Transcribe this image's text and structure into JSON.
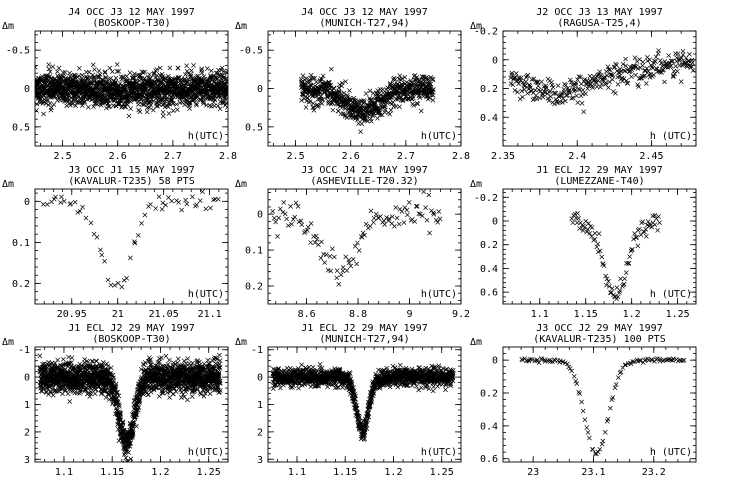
{
  "chart_data": [
    {
      "type": "scatter",
      "title_line1": "J4 OCC J3 12 MAY 1997",
      "title_line2": "(BOSKOOP-T30)",
      "ylabel": "Δm",
      "xlabel": "h(UTC)",
      "xlim": [
        2.45,
        2.8
      ],
      "ylim": [
        0.75,
        -0.75
      ],
      "xticks": [
        2.5,
        2.6,
        2.7,
        2.8
      ],
      "xtick_labels": [
        "2.5",
        "2.6",
        "2.7",
        "2.8"
      ],
      "yticks": [
        -0.5,
        0,
        0.5
      ],
      "ytick_labels": [
        "-0.5",
        "0",
        "0.5"
      ],
      "marker": "x",
      "point_count": 1600,
      "noise": 0.11,
      "features": [
        {
          "kind": "dip",
          "center": 2.62,
          "depth": 0.05,
          "width": 0.06
        }
      ]
    },
    {
      "type": "scatter",
      "title_line1": "J4 OCC J3 12 MAY 1997",
      "title_line2": "(MUNICH-T27,94)",
      "ylabel": "Δm",
      "xlabel": "h(UTC)",
      "xlim": [
        2.45,
        2.8
      ],
      "ylim": [
        0.75,
        -0.75
      ],
      "xticks": [
        2.5,
        2.6,
        2.7,
        2.8
      ],
      "xtick_labels": [
        "2.5",
        "2.6",
        "2.7",
        "2.8"
      ],
      "yticks": [
        -0.5,
        0,
        0.5
      ],
      "ytick_labels": [
        "-0.5",
        "0",
        "0.5"
      ],
      "marker": "x",
      "point_count": 700,
      "noise": 0.09,
      "xrange": [
        2.51,
        2.75
      ],
      "features": [
        {
          "kind": "dip",
          "center": 2.62,
          "depth": 0.3,
          "width": 0.045
        }
      ]
    },
    {
      "type": "scatter",
      "title_line1": "J2 OCC J3 13 MAY 1997",
      "title_line2": "(RAGUSA-T25,4)",
      "ylabel": "Δm",
      "xlabel": "h (UTC)",
      "xlim": [
        2.35,
        2.48
      ],
      "ylim": [
        0.6,
        -0.2
      ],
      "xticks": [
        2.35,
        2.4,
        2.45
      ],
      "xtick_labels": [
        "2.35",
        "2.4",
        "2.45"
      ],
      "yticks": [
        -0.2,
        0,
        0.2,
        0.4
      ],
      "ytick_labels": [
        "-0.2",
        "0",
        "0.2",
        "0.4"
      ],
      "marker": "x",
      "point_count": 320,
      "noise": 0.05,
      "xrange": [
        2.355,
        2.478
      ],
      "features": [
        {
          "kind": "trend",
          "x": [
            2.355,
            2.385,
            2.42,
            2.478
          ],
          "y": [
            0.12,
            0.25,
            0.12,
            0.0
          ]
        }
      ]
    },
    {
      "type": "scatter",
      "title_line1": "J3 OCC J1 15 MAY 1997",
      "title_line2": "(KAVALUR-T235) 58 PTS",
      "ylabel": "Δm",
      "xlabel": "h(UTC)",
      "xlim": [
        20.91,
        21.12
      ],
      "ylim": [
        0.25,
        -0.03
      ],
      "xticks": [
        20.95,
        21,
        21.05,
        21.1
      ],
      "xtick_labels": [
        "20.95",
        "21",
        "21.05",
        "21.1"
      ],
      "yticks": [
        0,
        0.1,
        0.2
      ],
      "ytick_labels": [
        "0",
        "0.1",
        "0.2"
      ],
      "marker": "x",
      "point_count": 58,
      "noise": 0.01,
      "xrange": [
        20.92,
        21.11
      ],
      "features": [
        {
          "kind": "dip",
          "center": 20.998,
          "depth": 0.21,
          "width": 0.024
        }
      ]
    },
    {
      "type": "scatter",
      "title_line1": "J3 OCC J4 21 MAY 1997",
      "title_line2": "(ASHEVILLE-T20.32)",
      "ylabel": "Δm",
      "xlabel": "h(UTC)",
      "xlim": [
        8.45,
        9.2
      ],
      "ylim": [
        0.25,
        -0.07
      ],
      "xticks": [
        8.6,
        8.8,
        9,
        9.2
      ],
      "xtick_labels": [
        "8.6",
        "8.8",
        "9",
        "9.2"
      ],
      "yticks": [
        0,
        0.1,
        0.2
      ],
      "ytick_labels": [
        "0",
        "0.1",
        "0.2"
      ],
      "marker": "x",
      "point_count": 110,
      "noise": 0.02,
      "xrange": [
        8.47,
        9.12
      ],
      "features": [
        {
          "kind": "dip",
          "center": 8.72,
          "depth": 0.16,
          "width": 0.1
        }
      ]
    },
    {
      "type": "scatter",
      "title_line1": "J1 ECL J2 29 MAY 1997",
      "title_line2": "(LUMEZZANE-T40)",
      "ylabel": "Δm",
      "xlabel": "h  (UTC)",
      "xlim": [
        1.06,
        1.27
      ],
      "ylim": [
        0.7,
        -0.27
      ],
      "xticks": [
        1.1,
        1.15,
        1.2,
        1.25
      ],
      "xtick_labels": [
        "1.1",
        "1.15",
        "1.2",
        "1.25"
      ],
      "yticks": [
        -0.2,
        0,
        0.2,
        0.4,
        0.6
      ],
      "ytick_labels": [
        "-0.2",
        "0",
        "0.2",
        "0.4",
        "0.6"
      ],
      "marker": "x",
      "point_count": 90,
      "noise": 0.04,
      "xrange": [
        1.135,
        1.23
      ],
      "features": [
        {
          "kind": "dip",
          "center": 1.182,
          "depth": 0.62,
          "width": 0.018
        }
      ]
    },
    {
      "type": "scatter",
      "title_line1": "J1 ECL J2 29 MAY 1997",
      "title_line2": "(BOSKOOP-T30)",
      "ylabel": "Δm",
      "xlabel": "h(UTC)",
      "xlim": [
        1.07,
        1.27
      ],
      "ylim": [
        3.1,
        -1.1
      ],
      "xticks": [
        1.1,
        1.15,
        1.2,
        1.25
      ],
      "xtick_labels": [
        "1.1",
        "1.15",
        "1.2",
        "1.25"
      ],
      "yticks": [
        -1,
        0,
        1,
        2,
        3
      ],
      "ytick_labels": [
        "-1",
        "0",
        "1",
        "2",
        "3"
      ],
      "marker": "x",
      "point_count": 1800,
      "noise": 0.28,
      "xrange": [
        1.075,
        1.262
      ],
      "features": [
        {
          "kind": "dip",
          "center": 1.165,
          "depth": 2.4,
          "width": 0.011
        }
      ]
    },
    {
      "type": "scatter",
      "title_line1": "J1 ECL J2 29 MAY 1997",
      "title_line2": "(MUNICH-T27,94)",
      "ylabel": "Δm",
      "xlabel": "h(UTC)",
      "xlim": [
        1.07,
        1.27
      ],
      "ylim": [
        3.1,
        -1.1
      ],
      "xticks": [
        1.1,
        1.15,
        1.2,
        1.25
      ],
      "xtick_labels": [
        "1.1",
        "1.15",
        "1.2",
        "1.25"
      ],
      "yticks": [
        -1,
        0,
        1,
        2,
        3
      ],
      "ytick_labels": [
        "-1",
        "0",
        "1",
        "2",
        "3"
      ],
      "marker": "x",
      "point_count": 1300,
      "noise": 0.16,
      "xrange": [
        1.075,
        1.262
      ],
      "features": [
        {
          "kind": "dip",
          "center": 1.168,
          "depth": 2.0,
          "width": 0.009
        }
      ]
    },
    {
      "type": "scatter",
      "title_line1": "J3 OCC J2 29 MAY 1997",
      "title_line2": "(KAVALUR-T235) 100 PTS",
      "ylabel": "Δm",
      "xlabel": "h  (UTC)",
      "xlim": [
        22.95,
        23.27
      ],
      "ylim": [
        0.62,
        -0.08
      ],
      "xticks": [
        23,
        23.1,
        23.2
      ],
      "xtick_labels": [
        "23",
        "23.1",
        "23.2"
      ],
      "yticks": [
        0,
        0.2,
        0.4,
        0.6
      ],
      "ytick_labels": [
        "0",
        "0.2",
        "0.4",
        "0.6"
      ],
      "marker": "x",
      "point_count": 100,
      "noise": 0.006,
      "xrange": [
        22.98,
        23.25
      ],
      "features": [
        {
          "kind": "dip",
          "center": 23.105,
          "depth": 0.57,
          "width": 0.028
        }
      ]
    }
  ]
}
